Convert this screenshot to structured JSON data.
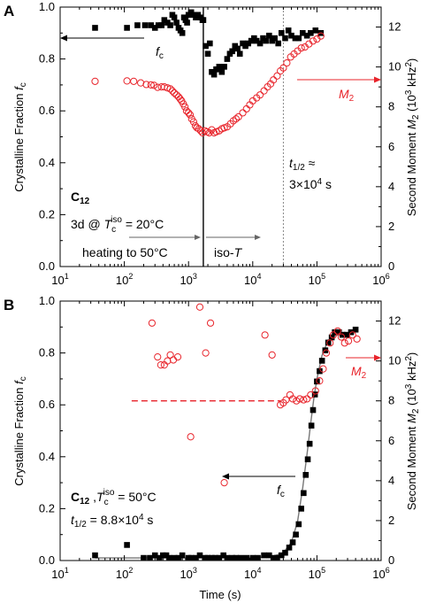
{
  "colors": {
    "fc": "#000000",
    "m2": "#e8242b",
    "m2_marker": "#e8242b",
    "dash": "#e8242b"
  },
  "chart_data": [
    {
      "type": "scatter",
      "panel_label": "A",
      "x_scale": "log",
      "xlim": [
        10,
        1000000
      ],
      "ylim_left": [
        0,
        1.0
      ],
      "ylim_right": [
        0,
        13
      ],
      "xlabel": "",
      "ylabel_left": "Crystalline Fraction fc",
      "ylabel_right": "Second Moment M2 (10^3 kHz^2)",
      "x_ticks": [
        "10^1",
        "10^2",
        "10^3",
        "10^4",
        "10^5",
        "10^6"
      ],
      "y_ticks_left": [
        "0.0",
        "0.2",
        "0.4",
        "0.6",
        "0.8",
        "1.0"
      ],
      "y_ticks_right": [
        "0",
        "2",
        "4",
        "6",
        "8",
        "10",
        "12"
      ],
      "series": [
        {
          "name": "fc",
          "axis": "left",
          "marker": "filled-square",
          "x": [
            35,
            110,
            160,
            210,
            260,
            300,
            340,
            380,
            420,
            470,
            520,
            560,
            600,
            650,
            700,
            750,
            800,
            850,
            900,
            950,
            1000,
            1100,
            1200,
            1300,
            1400,
            1550,
            1650,
            1700,
            1850,
            2000,
            2150,
            2300,
            2500,
            2700,
            3000,
            3300,
            3600,
            4000,
            4400,
            4800,
            5300,
            5800,
            6300,
            7000,
            7700,
            8500,
            9500,
            10500,
            11500,
            13000,
            14500,
            16000,
            18000,
            20000,
            22000,
            25000,
            28000,
            32000,
            36000,
            40000,
            46000,
            52000,
            60000,
            70000,
            80000,
            95000,
            115000
          ],
          "y": [
            0.92,
            0.92,
            0.93,
            0.93,
            0.93,
            0.92,
            0.93,
            0.93,
            0.95,
            0.94,
            0.93,
            0.97,
            0.96,
            0.94,
            0.92,
            0.91,
            0.9,
            0.96,
            0.95,
            0.94,
            0.97,
            0.98,
            0.97,
            0.96,
            0.97,
            0.96,
            0.95,
            0.95,
            0.85,
            0.82,
            0.86,
            0.75,
            0.74,
            0.76,
            0.77,
            0.75,
            0.77,
            0.8,
            0.82,
            0.83,
            0.85,
            0.84,
            0.82,
            0.86,
            0.85,
            0.86,
            0.87,
            0.88,
            0.87,
            0.86,
            0.88,
            0.87,
            0.89,
            0.87,
            0.88,
            0.86,
            0.9,
            0.88,
            0.91,
            0.89,
            0.88,
            0.88,
            0.9,
            0.89,
            0.9,
            0.91,
            0.9
          ]
        },
        {
          "name": "M2",
          "axis": "right",
          "marker": "open-circle",
          "x": [
            35,
            110,
            140,
            180,
            220,
            260,
            290,
            330,
            380,
            420,
            470,
            520,
            560,
            600,
            650,
            700,
            740,
            780,
            830,
            880,
            930,
            1000,
            1060,
            1120,
            1200,
            1280,
            1350,
            1450,
            1550,
            1650,
            1800,
            1950,
            2100,
            2300,
            2500,
            2700,
            3000,
            3300,
            3600,
            4000,
            4500,
            5000,
            5500,
            6000,
            7000,
            8000,
            9000,
            10000,
            11500,
            13000,
            15000,
            17000,
            19000,
            21000,
            24000,
            27000,
            30000,
            34000,
            39000,
            44000,
            50000,
            57000,
            65000,
            75000,
            87000,
            100000,
            115000
          ],
          "y": [
            9.28,
            9.3,
            9.28,
            9.2,
            9.12,
            9.1,
            9.08,
            8.98,
            9.0,
            9.0,
            8.95,
            8.9,
            8.8,
            8.7,
            8.6,
            8.5,
            8.4,
            8.3,
            8.15,
            8.0,
            7.8,
            7.7,
            7.6,
            7.4,
            7.25,
            7.05,
            6.95,
            6.9,
            6.8,
            6.7,
            6.8,
            6.75,
            6.7,
            6.85,
            6.7,
            6.75,
            6.8,
            6.9,
            6.95,
            7.0,
            7.15,
            7.3,
            7.4,
            7.5,
            7.7,
            7.9,
            8.1,
            8.3,
            8.45,
            8.6,
            8.8,
            9.0,
            9.15,
            9.35,
            9.55,
            9.8,
            9.95,
            10.2,
            10.5,
            10.65,
            10.8,
            10.95,
            11.0,
            11.15,
            11.3,
            11.4,
            11.55
          ]
        }
      ],
      "vlines": [
        {
          "x": 1700,
          "style": "solid"
        },
        {
          "x": 30000,
          "style": "dotted"
        }
      ],
      "annotations": {
        "fc_label": "fc",
        "m2_label": "M2",
        "t_half_1": "t1/2 ≈",
        "t_half_2": "3×10^4 s",
        "sample": "C12",
        "cond_prefix": "3d @ ",
        "cond_T": "Tc",
        "cond_T_sup": "iso",
        "cond_suffix": " = 20°C",
        "heating": "heating to 50°C",
        "iso_prefix": "iso-",
        "iso_T": "T"
      }
    },
    {
      "type": "scatter",
      "panel_label": "B",
      "x_scale": "log",
      "xlim": [
        10,
        1000000
      ],
      "ylim_left": [
        0,
        1.0
      ],
      "ylim_right": [
        0,
        13
      ],
      "xlabel": "Time (s)",
      "ylabel_left": "Crystalline Fraction fc",
      "ylabel_right": "Second Moment M2 (10^3 kHz^2)",
      "x_ticks": [
        "10^1",
        "10^2",
        "10^3",
        "10^4",
        "10^5",
        "10^6"
      ],
      "y_ticks_left": [
        "0.0",
        "0.2",
        "0.4",
        "0.6",
        "0.8",
        "1.0"
      ],
      "y_ticks_right": [
        "0",
        "2",
        "4",
        "6",
        "8",
        "10",
        "12"
      ],
      "series": [
        {
          "name": "fc",
          "axis": "left",
          "marker": "filled-square",
          "x": [
            35,
            110,
            200,
            250,
            300,
            350,
            400,
            450,
            500,
            600,
            700,
            800,
            1000,
            1100,
            1300,
            1500,
            1800,
            2000,
            2300,
            2600,
            3000,
            3500,
            4000,
            4800,
            5500,
            6500,
            8000,
            10000,
            12000,
            15000,
            18000,
            21000,
            24000,
            28000,
            32000,
            37000,
            42000,
            47000,
            52000,
            57000,
            62000,
            67000,
            72000,
            77000,
            82000,
            87000,
            93000,
            100000,
            110000,
            120000,
            135000,
            150000,
            170000,
            190000,
            220000,
            250000,
            290000,
            340000,
            400000
          ],
          "y": [
            0.02,
            0.06,
            0.01,
            0.01,
            0.02,
            0.01,
            0.02,
            0.02,
            0.01,
            0.01,
            0.01,
            0.02,
            0.01,
            0.01,
            0.01,
            0.02,
            0.01,
            0.01,
            0.01,
            0.01,
            0.01,
            0.02,
            0.01,
            0.01,
            0.01,
            0.01,
            0.01,
            0.01,
            0.01,
            0.02,
            0.02,
            0.01,
            0.01,
            0.02,
            0.03,
            0.05,
            0.07,
            0.1,
            0.14,
            0.2,
            0.26,
            0.33,
            0.39,
            0.45,
            0.52,
            0.58,
            0.64,
            0.69,
            0.73,
            0.77,
            0.81,
            0.84,
            0.86,
            0.88,
            0.88,
            0.87,
            0.87,
            0.88,
            0.89
          ]
        },
        {
          "name": "M2",
          "axis": "right",
          "marker": "open-circle",
          "x": [
            270,
            330,
            370,
            420,
            470,
            520,
            580,
            680,
            1080,
            1500,
            1850,
            2200,
            3600,
            15500,
            20000,
            27000,
            30000,
            33000,
            38000,
            42000,
            48000,
            54000,
            62000,
            70000,
            80000,
            95000,
            110000,
            125000,
            140000,
            160000,
            180000,
            210000,
            240000,
            270000,
            310000,
            360000,
            420000
          ],
          "y": [
            11.9,
            10.2,
            9.8,
            9.8,
            10.0,
            10.3,
            10.05,
            10.2,
            6.2,
            12.7,
            10.4,
            11.9,
            3.9,
            11.3,
            10.3,
            7.8,
            7.9,
            8.05,
            8.3,
            8.1,
            8.0,
            8.1,
            8.05,
            8.1,
            8.3,
            8.5,
            9.0,
            9.6,
            10.4,
            10.9,
            11.3,
            11.5,
            11.2,
            10.9,
            11.0,
            11.3,
            11.1
          ]
        },
        {
          "name": "",
          "axis": "left",
          "type": "fit-line",
          "x": [
            35,
            1000,
            10000,
            20000,
            30000,
            40000,
            50000,
            60000,
            70000,
            80000,
            90000,
            100000,
            120000,
            150000,
            200000,
            300000,
            400000
          ],
          "y": [
            0.01,
            0.01,
            0.01,
            0.015,
            0.03,
            0.07,
            0.15,
            0.28,
            0.41,
            0.53,
            0.63,
            0.7,
            0.79,
            0.85,
            0.87,
            0.875,
            0.88
          ]
        }
      ],
      "hline": {
        "y_right": 8.0,
        "x_from": 130,
        "x_to": 27000,
        "style": "dashed"
      },
      "annotations": {
        "fc_label": "fc",
        "m2_label": "M2",
        "sample": "C12",
        "cond_T": "Tc",
        "cond_T_sup": "iso",
        "cond_suffix": " = 50°C",
        "t_half": "t1/2 = 8.8×10^4 s"
      }
    }
  ]
}
